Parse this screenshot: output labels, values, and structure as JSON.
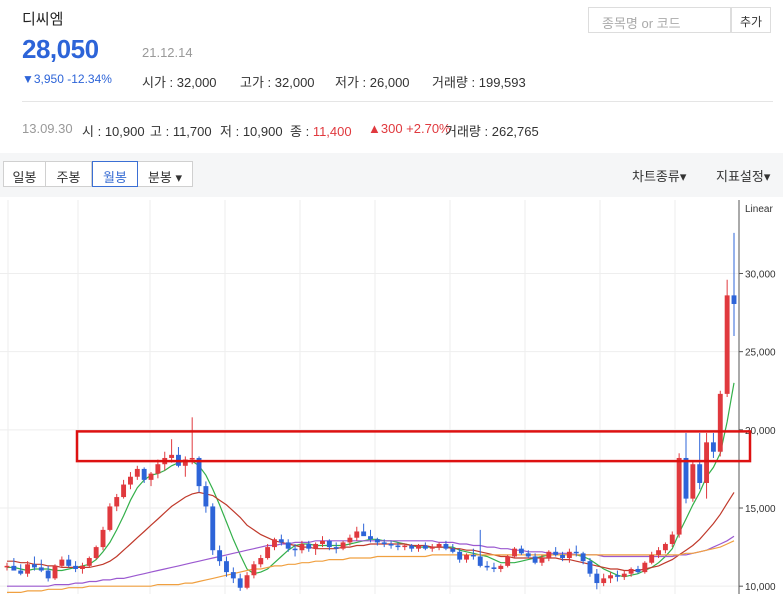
{
  "stock": {
    "name": "디씨엠",
    "price": "28,050",
    "date": "21.12.14",
    "change": "▼3,950 -12.34%",
    "open_label": "시가",
    "open": "32,000",
    "high_label": "고가",
    "high": "32,000",
    "low_label": "저가",
    "low": "26,000",
    "volume_label": "거래량",
    "volume": "199,593"
  },
  "search": {
    "placeholder": "종목명 or 코드",
    "add_button": "추가"
  },
  "history": {
    "date": "13.09.30",
    "open_label": "시",
    "open": "10,900",
    "high_label": "고",
    "high": "11,700",
    "low_label": "저",
    "low": "10,900",
    "close_label": "종",
    "close": "11,400",
    "change": "▲300 +2.70%",
    "volume_label": "거래량",
    "volume": "262,765"
  },
  "toolbar": {
    "tabs": [
      "일봉",
      "주봉",
      "월봉",
      "분봉 ▾"
    ],
    "active_tab": "월봉",
    "chart_type": "차트종류▾",
    "indicator": "지표설정▾"
  },
  "colors": {
    "up": "#e0393e",
    "down": "#2d64d8",
    "ma5": "#33b04a",
    "ma10": "#c0392b",
    "ma20": "#9b59d0",
    "ma60": "#f0a040",
    "highlight": "#dd1111"
  },
  "chart_data": {
    "type": "candlestick",
    "scale_label": "Linear",
    "y_ticks": [
      10000,
      15000,
      20000,
      25000,
      30000
    ],
    "y_tick_labels": [
      "10,000",
      "15,000",
      "20,000",
      "25,000",
      "30,000"
    ],
    "ylim": [
      9500,
      34700
    ],
    "resistance_band": [
      18000,
      19900
    ],
    "candles": [
      [
        11200,
        11500,
        11000,
        11300
      ],
      [
        11300,
        11800,
        11100,
        11000
      ],
      [
        11000,
        11400,
        10700,
        10800
      ],
      [
        10800,
        11600,
        10600,
        11400
      ],
      [
        11400,
        11900,
        11000,
        11200
      ],
      [
        11200,
        11700,
        10900,
        11000
      ],
      [
        11000,
        11300,
        10300,
        10500
      ],
      [
        10500,
        11400,
        10400,
        11300
      ],
      [
        11300,
        11900,
        11200,
        11700
      ],
      [
        11700,
        12000,
        11200,
        11300
      ],
      [
        11300,
        11600,
        10900,
        11100
      ],
      [
        11100,
        11500,
        10800,
        11300
      ],
      [
        11300,
        11900,
        11200,
        11800
      ],
      [
        11800,
        12600,
        11700,
        12500
      ],
      [
        12500,
        13800,
        12300,
        13600
      ],
      [
        13600,
        15300,
        13500,
        15100
      ],
      [
        15100,
        15900,
        14800,
        15700
      ],
      [
        15700,
        16800,
        15600,
        16500
      ],
      [
        16500,
        17300,
        16200,
        17000
      ],
      [
        17000,
        17700,
        16800,
        17500
      ],
      [
        17500,
        17600,
        16600,
        16800
      ],
      [
        16800,
        17300,
        16400,
        17200
      ],
      [
        17200,
        18100,
        16900,
        17800
      ],
      [
        17800,
        18600,
        17400,
        18200
      ],
      [
        18200,
        19400,
        17900,
        18400
      ],
      [
        18400,
        18900,
        17600,
        17700
      ],
      [
        17700,
        18300,
        17000,
        18100
      ],
      [
        18100,
        20800,
        17800,
        18200
      ],
      [
        18200,
        18300,
        16000,
        16400
      ],
      [
        16400,
        16700,
        14700,
        15100
      ],
      [
        15100,
        15300,
        12000,
        12300
      ],
      [
        12300,
        12600,
        11300,
        11600
      ],
      [
        11600,
        11900,
        10600,
        10900
      ],
      [
        10900,
        11200,
        10200,
        10500
      ],
      [
        10500,
        10800,
        9700,
        9900
      ],
      [
        9900,
        10900,
        9800,
        10700
      ],
      [
        10700,
        11600,
        10500,
        11400
      ],
      [
        11400,
        12000,
        11200,
        11800
      ],
      [
        11800,
        12700,
        11700,
        12500
      ],
      [
        12500,
        13100,
        12300,
        13000
      ],
      [
        13000,
        13300,
        12600,
        12800
      ],
      [
        12800,
        13000,
        12200,
        12400
      ],
      [
        12400,
        12700,
        11900,
        12300
      ],
      [
        12300,
        12900,
        12100,
        12700
      ],
      [
        12700,
        12900,
        12200,
        12400
      ],
      [
        12400,
        12800,
        12000,
        12700
      ],
      [
        12700,
        13200,
        12500,
        12900
      ],
      [
        12900,
        13000,
        12300,
        12500
      ],
      [
        12500,
        12800,
        12100,
        12400
      ],
      [
        12400,
        12900,
        12300,
        12800
      ],
      [
        12800,
        13300,
        12600,
        13100
      ],
      [
        13100,
        13800,
        12900,
        13500
      ],
      [
        13500,
        14000,
        13300,
        13200
      ],
      [
        13200,
        13600,
        12800,
        13000
      ],
      [
        13000,
        13100,
        12600,
        12800
      ],
      [
        12800,
        13000,
        12500,
        12700
      ],
      [
        12700,
        12900,
        12400,
        12600
      ],
      [
        12600,
        12800,
        12300,
        12500
      ],
      [
        12500,
        12700,
        12300,
        12600
      ],
      [
        12600,
        12700,
        12200,
        12400
      ],
      [
        12400,
        12700,
        12200,
        12600
      ],
      [
        12600,
        12800,
        12300,
        12400
      ],
      [
        12400,
        12700,
        12200,
        12500
      ],
      [
        12500,
        12800,
        12300,
        12700
      ],
      [
        12700,
        12900,
        12300,
        12400
      ],
      [
        12400,
        12700,
        12100,
        12200
      ],
      [
        12200,
        12400,
        11500,
        11700
      ],
      [
        11700,
        12100,
        11500,
        12000
      ],
      [
        12000,
        12400,
        11700,
        11900
      ],
      [
        11900,
        13600,
        11200,
        11300
      ],
      [
        11300,
        11600,
        11000,
        11200
      ],
      [
        11200,
        11500,
        10900,
        11100
      ],
      [
        11100,
        11400,
        10900,
        11300
      ],
      [
        11300,
        12000,
        11200,
        11900
      ],
      [
        11900,
        12500,
        11800,
        12400
      ],
      [
        12400,
        12600,
        12000,
        12100
      ],
      [
        12100,
        12300,
        11800,
        11900
      ],
      [
        11900,
        12100,
        11400,
        11500
      ],
      [
        11500,
        12000,
        11300,
        11800
      ],
      [
        11800,
        12300,
        11600,
        12200
      ],
      [
        12200,
        12500,
        11900,
        12000
      ],
      [
        12000,
        12200,
        11600,
        11800
      ],
      [
        11800,
        12400,
        11500,
        12200
      ],
      [
        12200,
        12600,
        11900,
        12100
      ],
      [
        12100,
        12200,
        11400,
        11600
      ],
      [
        11600,
        11800,
        10600,
        10800
      ],
      [
        10800,
        11100,
        9800,
        10200
      ],
      [
        10200,
        10800,
        10000,
        10500
      ],
      [
        10500,
        10900,
        10200,
        10700
      ],
      [
        10700,
        11000,
        10300,
        10600
      ],
      [
        10600,
        11000,
        10400,
        10800
      ],
      [
        10800,
        11200,
        10600,
        11100
      ],
      [
        11100,
        11300,
        10800,
        10900
      ],
      [
        10900,
        11600,
        10800,
        11500
      ],
      [
        11500,
        12200,
        11400,
        12000
      ],
      [
        12000,
        12500,
        11800,
        12300
      ],
      [
        12300,
        12800,
        12100,
        12700
      ],
      [
        12700,
        13500,
        12500,
        13300
      ],
      [
        13300,
        18500,
        13100,
        18200
      ],
      [
        18200,
        19800,
        15300,
        15600
      ],
      [
        15600,
        18000,
        15400,
        17800
      ],
      [
        17800,
        19800,
        16200,
        16600
      ],
      [
        16600,
        19800,
        15600,
        19200
      ],
      [
        19200,
        19800,
        18200,
        18600
      ],
      [
        18600,
        22500,
        18300,
        22300
      ],
      [
        22300,
        29600,
        22100,
        28600
      ],
      [
        28600,
        32600,
        26000,
        28050
      ]
    ],
    "ma_values": {
      "ma5": [
        11200,
        11200,
        11100,
        11000,
        11100,
        11100,
        11100,
        11000,
        11000,
        11100,
        11200,
        11300,
        11400,
        11700,
        12200,
        12800,
        13600,
        14500,
        15500,
        16300,
        16800,
        17100,
        17200,
        17400,
        17700,
        17900,
        18000,
        18000,
        17700,
        17100,
        16200,
        15200,
        14100,
        13000,
        12000,
        11100,
        10800,
        10900,
        11100,
        11500,
        11900,
        12300,
        12600,
        12700,
        12700,
        12600,
        12600,
        12600,
        12600,
        12600,
        12700,
        12800,
        12900,
        13000,
        13000,
        12900,
        12900,
        12800,
        12700,
        12600,
        12500,
        12500,
        12500,
        12500,
        12500,
        12500,
        12300,
        12200,
        12100,
        12000,
        11900,
        11700,
        11500,
        11500,
        11500,
        11600,
        11700,
        11800,
        11900,
        12000,
        12000,
        12000,
        12000,
        12000,
        11900,
        11700,
        11400,
        11100,
        10900,
        10700,
        10600,
        10700,
        10800,
        11000,
        11200,
        11500,
        11900,
        12400,
        13400,
        14300,
        15200,
        16000,
        17000,
        17600,
        18500,
        20500,
        23000
      ],
      "ma20": [
        11600,
        11600,
        11500,
        11500,
        11400,
        11400,
        11300,
        11300,
        11200,
        11200,
        11200,
        11200,
        11200,
        11300,
        11400,
        11600,
        11900,
        12300,
        12700,
        13100,
        13500,
        13900,
        14300,
        14700,
        15100,
        15400,
        15700,
        15900,
        16000,
        15900,
        15800,
        15500,
        15200,
        14800,
        14400,
        13900,
        13600,
        13300,
        13100,
        12900,
        12800,
        12700,
        12600,
        12500,
        12500,
        12400,
        12400,
        12400,
        12400,
        12500,
        12500,
        12600,
        12600,
        12700,
        12700,
        12700,
        12700,
        12700,
        12700,
        12600,
        12600,
        12600,
        12500,
        12500,
        12500,
        12400,
        12400,
        12300,
        12300,
        12200,
        12100,
        12000,
        11900,
        11900,
        11800,
        11800,
        11800,
        11800,
        11800,
        11800,
        11800,
        11700,
        11700,
        11600,
        11500,
        11400,
        11300,
        11200,
        11100,
        11100,
        11000,
        11000,
        11000,
        11100,
        11200,
        11300,
        11500,
        11700,
        12000,
        12300,
        12600,
        13000,
        13500,
        14000,
        14600,
        15300,
        16000
      ],
      "ma60": [
        10000,
        10000,
        10000,
        10000,
        10000,
        10000,
        10000,
        10100,
        10100,
        10100,
        10200,
        10200,
        10300,
        10300,
        10400,
        10400,
        10500,
        10500,
        10600,
        10700,
        10800,
        10900,
        11000,
        11100,
        11200,
        11300,
        11400,
        11500,
        11600,
        11700,
        11800,
        11900,
        12000,
        12100,
        12200,
        12300,
        12400,
        12500,
        12600,
        12600,
        12700,
        12700,
        12800,
        12800,
        12800,
        12900,
        12900,
        12900,
        12900,
        12900,
        12900,
        12900,
        12900,
        12900,
        12900,
        12900,
        12900,
        12900,
        12900,
        12900,
        12900,
        12900,
        12900,
        12800,
        12800,
        12800,
        12700,
        12700,
        12600,
        12600,
        12500,
        12500,
        12400,
        12400,
        12300,
        12300,
        12200,
        12200,
        12200,
        12100,
        12100,
        12100,
        12100,
        12000,
        12000,
        12000,
        12000,
        11900,
        11900,
        11900,
        11900,
        11900,
        11900,
        11900,
        11900,
        11900,
        11900,
        11900,
        12000,
        12000,
        12100,
        12200,
        12300,
        12500,
        12700,
        12900,
        13200
      ],
      "ma120": [
        9600,
        9600,
        9600,
        9700,
        9700,
        9700,
        9800,
        9800,
        9800,
        9900,
        9900,
        9900,
        10000,
        10000,
        10000,
        10000,
        10000,
        10000,
        10000,
        10000,
        10000,
        10000,
        10100,
        10100,
        10100,
        10100,
        10200,
        10200,
        10300,
        10400,
        10500,
        10600,
        10700,
        10800,
        10900,
        11000,
        11100,
        11100,
        11200,
        11300,
        11300,
        11400,
        11400,
        11500,
        11500,
        11600,
        11600,
        11700,
        11700,
        11700,
        11800,
        11800,
        11800,
        11800,
        11900,
        11900,
        11900,
        11900,
        11900,
        11900,
        11900,
        11900,
        12000,
        12000,
        12000,
        12000,
        12000,
        12000,
        12000,
        12000,
        12000,
        12000,
        12000,
        12000,
        12000,
        12000,
        12000,
        12000,
        12000,
        12000,
        12000,
        12000,
        12000,
        12000,
        12000,
        12000,
        12000,
        12000,
        12000,
        12000,
        12000,
        12000,
        12000,
        12000,
        12000,
        12000,
        12000,
        12000,
        12000,
        12100,
        12100,
        12200,
        12300,
        12400,
        12500,
        12700,
        12900
      ]
    }
  }
}
